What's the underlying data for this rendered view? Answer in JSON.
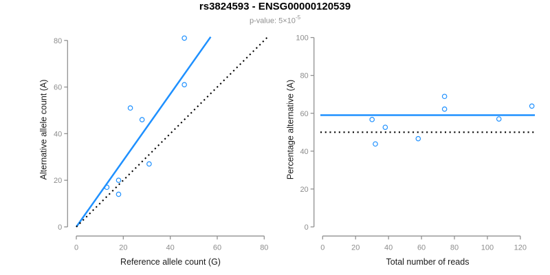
{
  "header": {
    "title": "rs3824593 - ENSG00000120539",
    "subtitle_prefix": "p-value: ",
    "subtitle_base": "5×10",
    "subtitle_exponent": "-5"
  },
  "colors": {
    "accent_blue": "#1E90FF",
    "line_black": "#000000",
    "axis_gray": "#909090",
    "tick_label_gray": "#8c8c8c",
    "axis_title_dark": "#1a1a1a",
    "subtitle_gray": "#8f8f8f"
  },
  "chart_data": [
    {
      "type": "scatter",
      "panel": "left",
      "xlabel": "Reference allele count (G)",
      "ylabel": "Alternative allele count (A)",
      "xlim": [
        0,
        80
      ],
      "ylim": [
        0,
        80
      ],
      "xticks": [
        0,
        20,
        40,
        60,
        80
      ],
      "yticks": [
        0,
        20,
        40,
        60,
        80
      ],
      "grid": false,
      "marker": "open-circle",
      "points": [
        [
          46,
          81
        ],
        [
          46,
          61
        ],
        [
          23,
          51
        ],
        [
          28,
          46
        ],
        [
          31,
          27
        ],
        [
          18,
          20
        ],
        [
          13,
          17
        ],
        [
          18,
          14
        ]
      ],
      "lines": [
        {
          "role": "fit-line",
          "style": "solid",
          "x1": 0,
          "y1": 0,
          "x2": 57.2,
          "y2": 81.5
        },
        {
          "role": "identity-line",
          "style": "dotted",
          "x1": 0,
          "y1": 0,
          "x2": 81.2,
          "y2": 81.2
        }
      ]
    },
    {
      "type": "scatter",
      "panel": "right",
      "xlabel": "Total number of reads",
      "ylabel": "Percentage alternative (A)",
      "xlim": [
        0,
        120
      ],
      "ylim": [
        0,
        100
      ],
      "xticks": [
        0,
        20,
        40,
        60,
        80,
        100,
        120
      ],
      "yticks": [
        0,
        20,
        40,
        60,
        80,
        100
      ],
      "grid": false,
      "marker": "open-circle",
      "points": [
        [
          30,
          56.7
        ],
        [
          38,
          52.6
        ],
        [
          32,
          43.8
        ],
        [
          58,
          46.6
        ],
        [
          74,
          68.9
        ],
        [
          74,
          62.2
        ],
        [
          107,
          57.0
        ],
        [
          127,
          63.8
        ]
      ],
      "lines": [
        {
          "role": "fit-line",
          "style": "solid",
          "y": 59
        },
        {
          "role": "null-line",
          "style": "dotted",
          "y": 50
        }
      ]
    }
  ]
}
